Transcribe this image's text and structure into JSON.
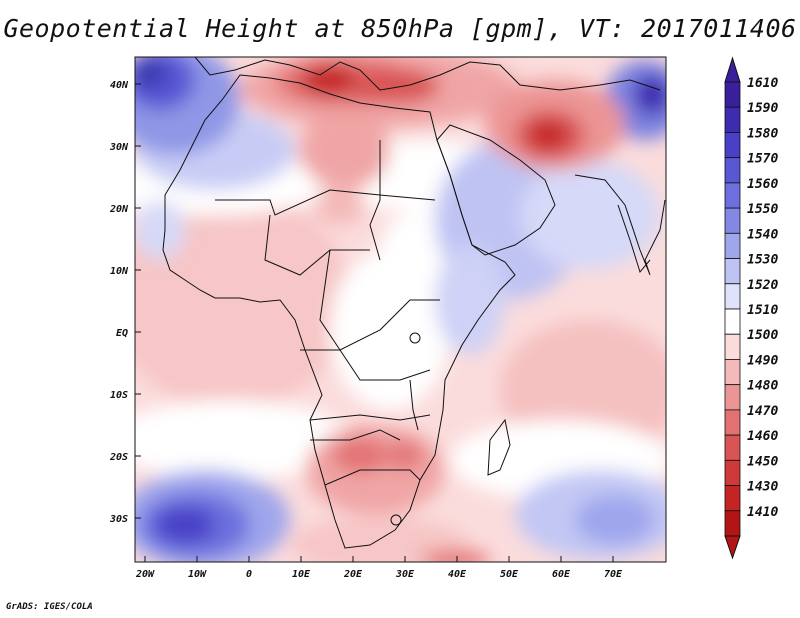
{
  "title": "Geopotential Height at 850hPa [gpm], VT: 2017011406",
  "credit": "GrADS: IGES/COLA",
  "map": {
    "region": "Africa",
    "lon_range": [
      -23,
      80
    ],
    "lat_range": [
      -37,
      45
    ],
    "lat_ticks": [
      "40N",
      "30N",
      "20N",
      "10N",
      "EQ",
      "10S",
      "20S",
      "30S"
    ],
    "lon_ticks": [
      "20W",
      "10W",
      "0",
      "10E",
      "20E",
      "30E",
      "40E",
      "50E",
      "60E",
      "70E"
    ]
  },
  "colorbar": {
    "levels": [
      "1610",
      "1590",
      "1580",
      "1570",
      "1560",
      "1550",
      "1540",
      "1530",
      "1520",
      "1510",
      "1500",
      "1490",
      "1480",
      "1470",
      "1460",
      "1450",
      "1430",
      "1410"
    ],
    "colors": [
      "#3a1f9c",
      "#3d2cb0",
      "#4a3fc7",
      "#5a57d5",
      "#6c6fdd",
      "#8288e3",
      "#9fa6ec",
      "#bfc3f3",
      "#dfe2fa",
      "#ffffff",
      "#fbdcdc",
      "#f4b9b9",
      "#ec9595",
      "#e37373",
      "#d95454",
      "#cf3939",
      "#c42424",
      "#b31515"
    ]
  }
}
